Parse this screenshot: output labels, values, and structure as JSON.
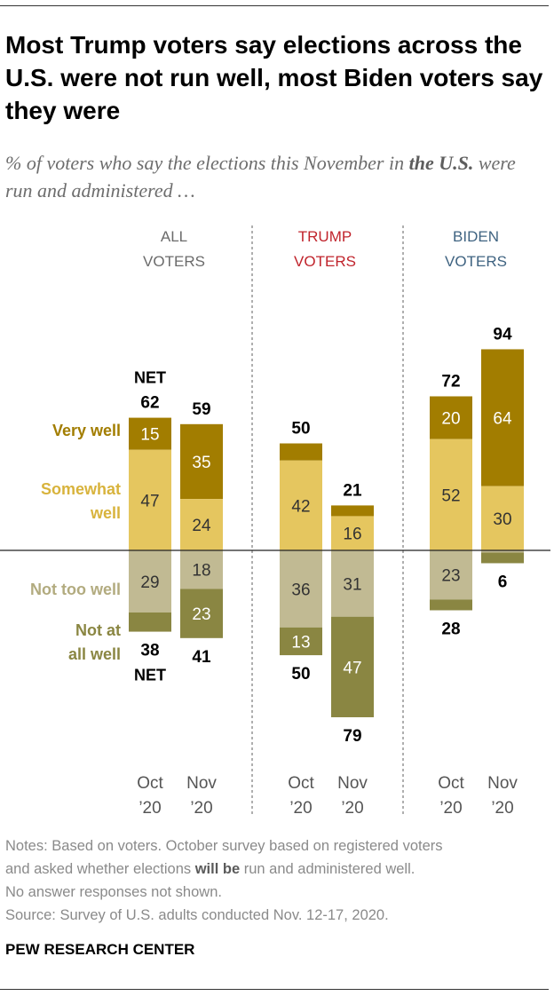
{
  "title": "Most Trump voters say elections across the U.S. were not run well, most Biden voters say they were",
  "subtitle": {
    "before": "% of voters who say the elections this November in ",
    "emphasis": "the U.S.",
    "after": " were run and administered …"
  },
  "chart_data": {
    "type": "bar",
    "stacked": "diverging",
    "groups": [
      {
        "label_line1": "ALL",
        "label_line2": "VOTERS",
        "color": "#6b6b6b"
      },
      {
        "label_line1": "TRUMP",
        "label_line2": "VOTERS",
        "color": "#c0242c"
      },
      {
        "label_line1": "BIDEN",
        "label_line2": "VOTERS",
        "color": "#3f6381"
      }
    ],
    "periods": [
      {
        "line1": "Oct",
        "line2": "’20"
      },
      {
        "line1": "Nov",
        "line2": "’20"
      }
    ],
    "series": [
      {
        "name": "Very well",
        "side": "positive",
        "color": "#a27d00",
        "text_color": "#ffffff"
      },
      {
        "name": "Somewhat well",
        "side": "positive",
        "color": "#e5c65f",
        "text_color": "#333333"
      },
      {
        "name": "Not too well",
        "side": "negative",
        "color": "#c1ba93",
        "text_color": "#333333"
      },
      {
        "name": "Not at all well",
        "side": "negative",
        "color": "#8a8642",
        "text_color": "#ffffff"
      }
    ],
    "legend_labels": [
      {
        "lines": [
          "Very well"
        ],
        "color": "#a27d00"
      },
      {
        "lines": [
          "Somewhat",
          "well"
        ],
        "color": "#d8b33c"
      },
      {
        "lines": [
          "Not too well"
        ],
        "color": "#b2ab7f"
      },
      {
        "lines": [
          "Not at",
          "all well"
        ],
        "color": "#8a8642"
      }
    ],
    "net_label": "NET",
    "bars": [
      {
        "group": 0,
        "period": 0,
        "values": [
          15,
          47,
          29,
          9
        ],
        "shown": [
          "15",
          "47",
          "29",
          ""
        ],
        "net_pos": 62,
        "net_neg": 38,
        "net_prefix": true
      },
      {
        "group": 0,
        "period": 1,
        "values": [
          35,
          24,
          18,
          23
        ],
        "shown": [
          "35",
          "24",
          "18",
          "23"
        ],
        "net_pos": 59,
        "net_neg": 41,
        "net_prefix": false
      },
      {
        "group": 1,
        "period": 0,
        "values": [
          8,
          42,
          36,
          13
        ],
        "shown": [
          "",
          "42",
          "36",
          "13"
        ],
        "net_pos": 50,
        "net_neg": 50,
        "net_prefix": false
      },
      {
        "group": 1,
        "period": 1,
        "values": [
          5,
          16,
          31,
          47
        ],
        "shown": [
          "",
          "16",
          "31",
          "47"
        ],
        "net_pos": 21,
        "net_neg": 79,
        "net_prefix": false
      },
      {
        "group": 2,
        "period": 0,
        "values": [
          20,
          52,
          23,
          5
        ],
        "shown": [
          "20",
          "52",
          "23",
          ""
        ],
        "net_pos": 72,
        "net_neg": 28,
        "net_prefix": false
      },
      {
        "group": 2,
        "period": 1,
        "values": [
          64,
          30,
          1,
          5
        ],
        "shown": [
          "64",
          "30",
          "",
          ""
        ],
        "net_pos": 94,
        "net_neg": 6,
        "net_prefix": false
      }
    ]
  },
  "notes": {
    "line1": "Notes: Based on voters. October survey based on registered voters",
    "line2_before": "and asked whether elections ",
    "line2_bold": "will be",
    "line2_after": " run and administered well.",
    "line3": "No answer responses not shown.",
    "source": "Source: Survey of U.S. adults conducted Nov. 12-17, 2020."
  },
  "organization": "PEW RESEARCH CENTER"
}
